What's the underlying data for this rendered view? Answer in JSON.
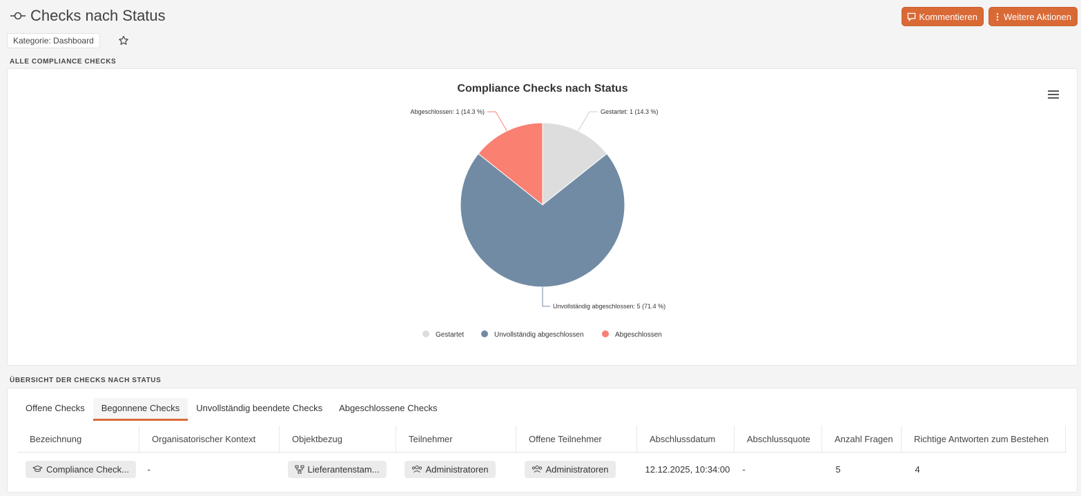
{
  "header": {
    "title": "Checks nach Status",
    "category_chip": "Kategorie: Dashboard",
    "comment_button": "Kommentieren",
    "more_actions_button": "Weitere Aktionen"
  },
  "sections": {
    "chart_section": "ALLE COMPLIANCE CHECKS",
    "table_section": "ÜBERSICHT DER CHECKS NACH STATUS"
  },
  "colors": {
    "accent": "#d96a36",
    "gestartet": "#dddddd",
    "unvollstaendig": "#718ba4",
    "abgeschlossen": "#fa8072"
  },
  "chart_data": {
    "type": "pie",
    "title": "Compliance Checks nach Status",
    "slices": [
      {
        "name": "Gestartet",
        "value": 1,
        "label": "Gestartet: 1 (14.3 %)",
        "color": "#dddddd"
      },
      {
        "name": "Unvollständig abgeschlossen",
        "value": 5,
        "label": "Unvollständig abgeschlossen: 5 (71.4 %)",
        "color": "#718ba4"
      },
      {
        "name": "Abgeschlossen",
        "value": 1,
        "label": "Abgeschlossen: 1 (14.3 %)",
        "color": "#fa8072"
      }
    ],
    "legend_placement": "bottom-center"
  },
  "tabs": [
    "Offene Checks",
    "Begonnene Checks",
    "Unvollständig beendete Checks",
    "Abgeschlossene Checks"
  ],
  "active_tab": "Begonnene Checks",
  "table": {
    "columns": [
      "Bezeichnung",
      "Organisatorischer Kontext",
      "Objektbezug",
      "Teilnehmer",
      "Offene Teilnehmer",
      "Abschlussdatum",
      "Abschlussquote",
      "Anzahl Fragen",
      "Richtige Antworten zum Bestehen"
    ],
    "rows": [
      {
        "bezeichnung": "Compliance Check...",
        "kontext": "-",
        "objektbezug": "Lieferantenstam...",
        "teilnehmer": "Administratoren",
        "offene_teilnehmer": "Administratoren",
        "abschlussdatum": "12.12.2025, 10:34:00",
        "abschlussquote": "-",
        "anzahl_fragen": "5",
        "richtige_antworten": "4"
      }
    ]
  }
}
